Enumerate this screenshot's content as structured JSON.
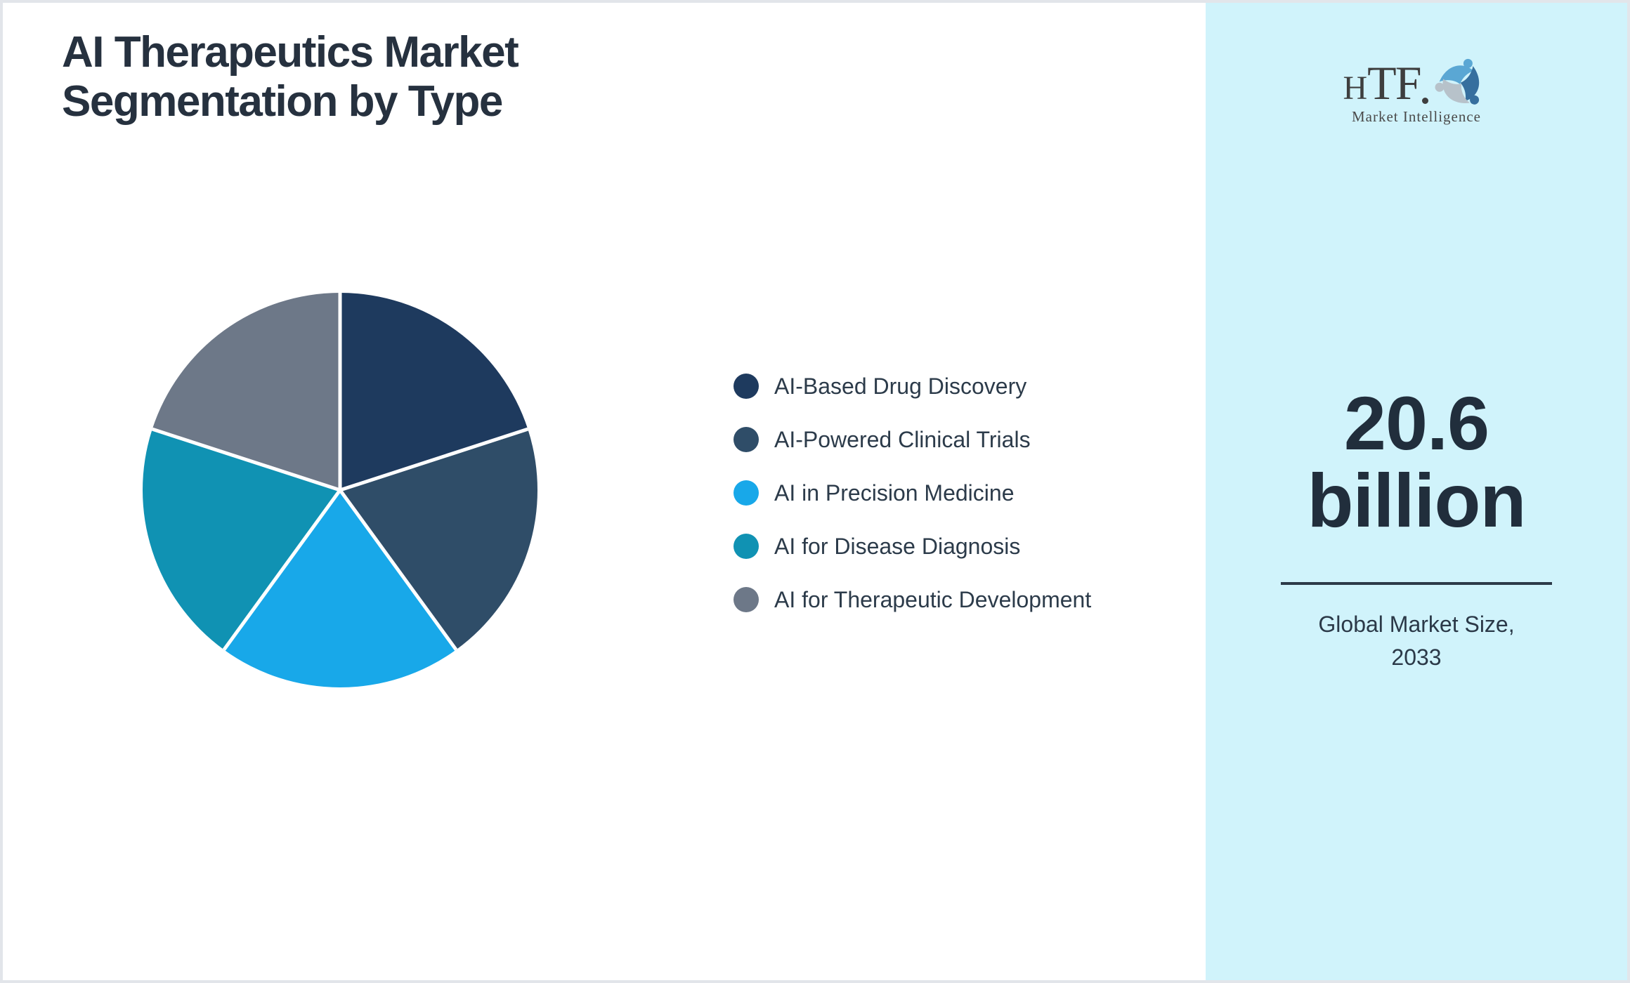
{
  "page": {
    "title_line1": "AI Therapeutics Market",
    "title_line2": "Segmentation by Type"
  },
  "chart_data": {
    "type": "pie",
    "title": "AI Therapeutics Market Segmentation by Type",
    "direction": "clockwise",
    "start_angle_deg": 0,
    "legend_position": "right",
    "values_are_estimated_percent": true,
    "segments": [
      {
        "label": "AI-Based Drug Discovery",
        "value": 20,
        "color": "#1e3a5e"
      },
      {
        "label": "AI-Powered Clinical Trials",
        "value": 20,
        "color": "#2f4d68"
      },
      {
        "label": "AI in Precision Medicine",
        "value": 20,
        "color": "#18a8e9"
      },
      {
        "label": "AI for Disease Diagnosis",
        "value": 20,
        "color": "#1092b3"
      },
      {
        "label": "AI for Therapeutic Development",
        "value": 20,
        "color": "#6d7888"
      }
    ]
  },
  "sidebar": {
    "logo": {
      "text_h": "H",
      "text_tf": "TF",
      "subtext": "Market Intelligence"
    },
    "value_line1": "20.6",
    "value_line2": "billion",
    "caption_line1": "Global Market Size,",
    "caption_line2": "2033"
  },
  "colors": {
    "sidebar_background": "#d0f3fb",
    "divider": "#2c3a48",
    "title_text": "#26313f",
    "value_text": "#212e3c",
    "logo_swirl": [
      "#5aa7d4",
      "#366f9e",
      "#b7c2ca"
    ]
  }
}
